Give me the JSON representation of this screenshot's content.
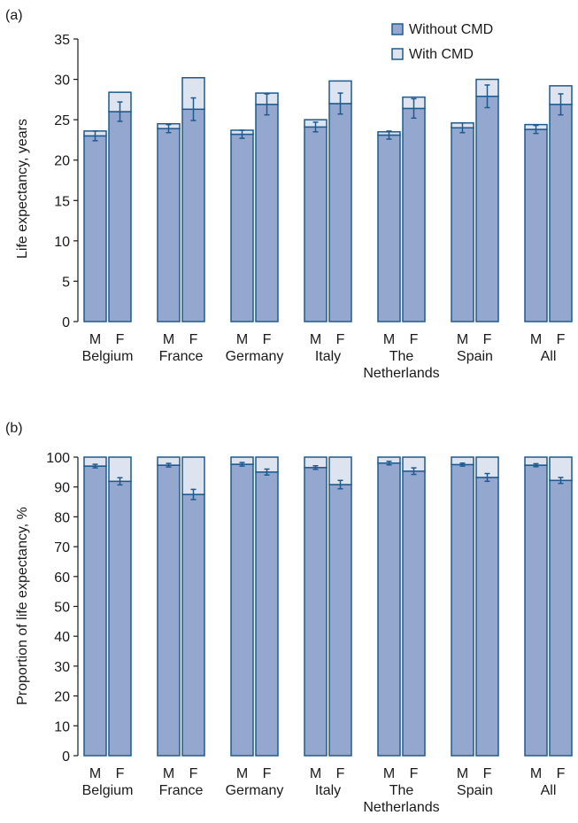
{
  "chart_data": [
    {
      "panel_label": "(a)",
      "type": "bar",
      "stacked": true,
      "ylabel": "Life expectancy, years",
      "ylim": [
        0,
        35
      ],
      "yticks": [
        0,
        5,
        10,
        15,
        20,
        25,
        30,
        35
      ],
      "grid": false,
      "legend_position": "top-right",
      "group_labels": [
        [
          "Belgium"
        ],
        [
          "France"
        ],
        [
          "Germany"
        ],
        [
          "Italy"
        ],
        [
          "The",
          "Netherlands"
        ],
        [
          "Spain"
        ],
        [
          "All"
        ]
      ],
      "bar_labels": [
        "M",
        "F"
      ],
      "series": [
        {
          "name": "Without CMD",
          "values": [
            [
              23.0,
              26.0
            ],
            [
              23.9,
              26.3
            ],
            [
              23.2,
              26.9
            ],
            [
              24.1,
              27.0
            ],
            [
              23.1,
              26.4
            ],
            [
              24.0,
              27.9
            ],
            [
              23.8,
              26.9
            ]
          ],
          "errors": [
            [
              0.6,
              1.2
            ],
            [
              0.5,
              1.4
            ],
            [
              0.5,
              1.3
            ],
            [
              0.6,
              1.3
            ],
            [
              0.5,
              1.2
            ],
            [
              0.6,
              1.4
            ],
            [
              0.5,
              1.3
            ]
          ]
        },
        {
          "name": "With CMD",
          "values": [
            [
              0.6,
              2.4
            ],
            [
              0.6,
              3.9
            ],
            [
              0.5,
              1.4
            ],
            [
              0.9,
              2.8
            ],
            [
              0.4,
              1.4
            ],
            [
              0.6,
              2.1
            ],
            [
              0.6,
              2.3
            ]
          ]
        }
      ]
    },
    {
      "panel_label": "(b)",
      "type": "bar",
      "stacked": true,
      "ylabel": "Proportion of life expectancy, %",
      "ylim": [
        0,
        100
      ],
      "yticks": [
        0,
        10,
        20,
        30,
        40,
        50,
        60,
        70,
        80,
        90,
        100
      ],
      "grid": false,
      "group_labels": [
        [
          "Belgium"
        ],
        [
          "France"
        ],
        [
          "Germany"
        ],
        [
          "Italy"
        ],
        [
          "The",
          "Netherlands"
        ],
        [
          "Spain"
        ],
        [
          "All"
        ]
      ],
      "bar_labels": [
        "M",
        "F"
      ],
      "series": [
        {
          "name": "Without CMD",
          "values": [
            [
              97.0,
              91.9
            ],
            [
              97.3,
              87.5
            ],
            [
              97.6,
              95.0
            ],
            [
              96.5,
              90.8
            ],
            [
              98.0,
              95.3
            ],
            [
              97.5,
              93.2
            ],
            [
              97.3,
              92.2
            ]
          ],
          "errors": [
            [
              0.6,
              1.2
            ],
            [
              0.6,
              1.7
            ],
            [
              0.6,
              1.0
            ],
            [
              0.6,
              1.4
            ],
            [
              0.6,
              1.1
            ],
            [
              0.5,
              1.3
            ],
            [
              0.5,
              1.0
            ]
          ]
        },
        {
          "name": "With CMD",
          "values": [
            [
              3.0,
              8.1
            ],
            [
              2.7,
              12.5
            ],
            [
              2.4,
              5.0
            ],
            [
              3.5,
              9.2
            ],
            [
              2.0,
              4.7
            ],
            [
              2.5,
              6.8
            ],
            [
              2.7,
              7.8
            ]
          ]
        }
      ]
    }
  ],
  "colors": {
    "without_cmd": "#94a8cf",
    "with_cmd": "#dde4f0",
    "outline": "#1e5a8e",
    "axis": "#1a1a1a"
  }
}
